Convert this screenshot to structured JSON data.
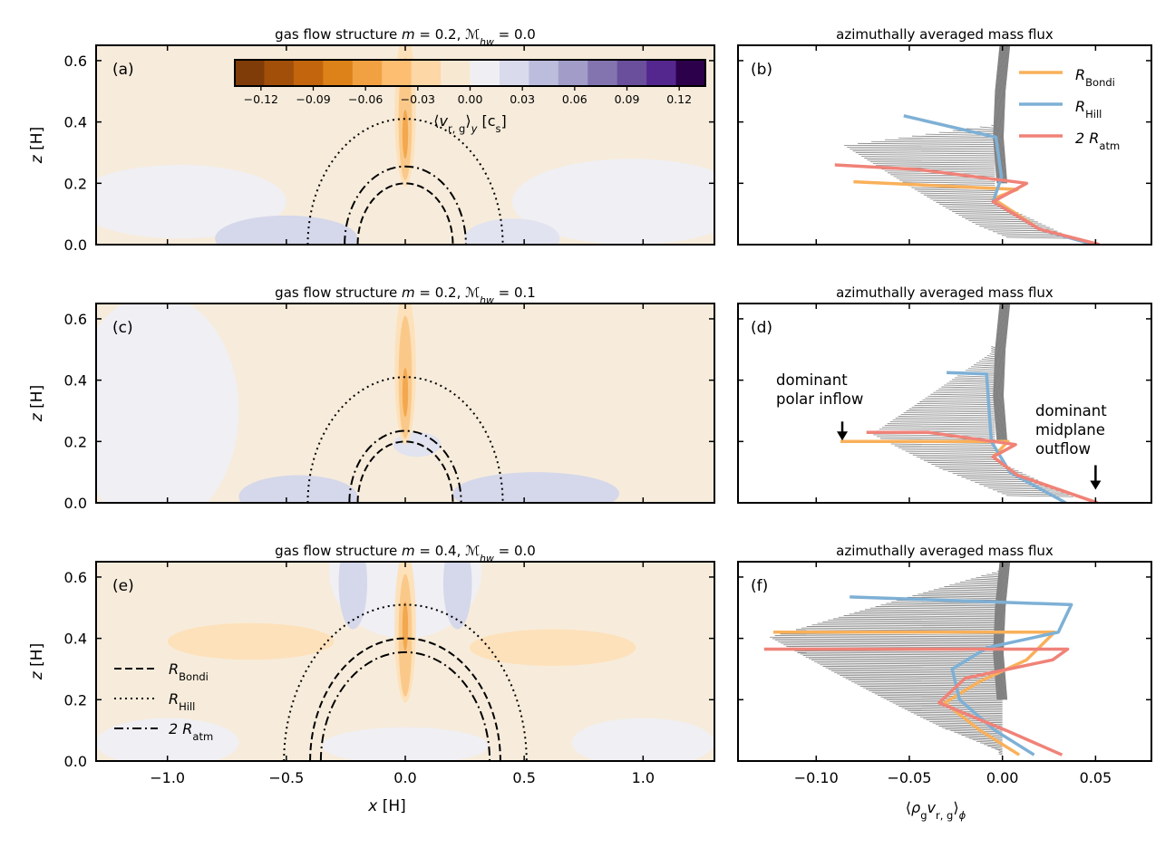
{
  "chart_data": {
    "type": "figure",
    "colormap_colors": [
      "#7f3b08",
      "#a24f0a",
      "#c2650c",
      "#dd8119",
      "#f1a141",
      "#fdbe72",
      "#fdd7a6",
      "#f7e8d2",
      "#efeff3",
      "#d9daeb",
      "#bcbddd",
      "#a19dc8",
      "#8374b0",
      "#6a4f9c",
      "#54278f",
      "#2d004b"
    ],
    "fill_colors": {
      "outflow": "#f7ecdb",
      "neutral": "#efeff4",
      "inflow_pale": "#e2e3f0",
      "inflow": "#d5d7ea",
      "orange_lite": "#fde1bb",
      "orange_mid": "#fac98a",
      "orange_deep": "#f3a84e"
    },
    "line_colors": {
      "bondi": "#f9b05a",
      "hill": "#7eb0d5",
      "atm": "#f08278",
      "gray": "#808080"
    },
    "left_panels": [
      {
        "label": "(a)",
        "title": "gas flow structure  m = 0.2,  ℳ_hw = 0.0",
        "title_parts": [
          "gas flow structure  ",
          "m",
          " = 0.2,  ",
          "ℳ",
          "hw",
          " = 0.0"
        ],
        "xlim": [
          -1.3,
          1.3
        ],
        "ylim": [
          0.0,
          0.65
        ],
        "r_bondi": 0.2,
        "r_hill": 0.41,
        "r_2atm": 0.255
      },
      {
        "label": "(c)",
        "title": "gas flow structure  m = 0.2,  ℳ_hw = 0.1",
        "title_parts": [
          "gas flow structure  ",
          "m",
          " = 0.2,  ",
          "ℳ",
          "hw",
          " = 0.1"
        ],
        "xlim": [
          -1.3,
          1.3
        ],
        "ylim": [
          0.0,
          0.65
        ],
        "r_bondi": 0.2,
        "r_hill": 0.41,
        "r_2atm": 0.235
      },
      {
        "label": "(e)",
        "title": "gas flow structure  m = 0.4,  ℳ_hw = 0.0",
        "title_parts": [
          "gas flow structure  ",
          "m",
          " = 0.4,  ",
          "ℳ",
          "hw",
          " = 0.0"
        ],
        "xlim": [
          -1.3,
          1.3
        ],
        "ylim": [
          0.0,
          0.65
        ],
        "r_bondi": 0.4,
        "r_hill": 0.51,
        "r_2atm": 0.355
      }
    ],
    "right_panels": [
      {
        "label": "(b)",
        "title": "azimuthally averaged mass flux",
        "xlim": [
          -0.142,
          0.08
        ],
        "ylim": [
          0.0,
          0.65
        ],
        "bondi": [
          [
            0.052,
            0.0
          ],
          [
            0.02,
            0.05
          ],
          [
            -0.005,
            0.15
          ],
          [
            0.008,
            0.18
          ],
          [
            -0.08,
            0.205
          ]
        ],
        "hill": [
          [
            0.049,
            0.0
          ],
          [
            0.02,
            0.05
          ],
          [
            -0.005,
            0.14
          ],
          [
            -0.0005,
            0.22
          ],
          [
            -0.0035,
            0.35
          ],
          [
            -0.053,
            0.42
          ]
        ],
        "atm": [
          [
            0.052,
            0.0
          ],
          [
            0.02,
            0.05
          ],
          [
            -0.005,
            0.14
          ],
          [
            0.013,
            0.2
          ],
          [
            -0.045,
            0.245
          ],
          [
            -0.09,
            0.26
          ]
        ],
        "gray_ymax": 0.65,
        "curtain_min": [
          -0.085,
          0.32
        ],
        "curtain_zone": [
          0.01,
          0.39
        ],
        "gray_step": 0.006
      },
      {
        "label": "(d)",
        "title": "azimuthally averaged mass flux",
        "xlim": [
          -0.142,
          0.08
        ],
        "ylim": [
          0.0,
          0.65
        ],
        "bondi": [
          [
            0.051,
            0.0
          ],
          [
            0.008,
            0.09
          ],
          [
            -0.005,
            0.15
          ],
          [
            0.003,
            0.2
          ],
          [
            -0.087,
            0.2
          ]
        ],
        "hill": [
          [
            0.034,
            0.0
          ],
          [
            0.004,
            0.1
          ],
          [
            -0.006,
            0.2
          ],
          [
            -0.0085,
            0.42
          ],
          [
            -0.03,
            0.425
          ]
        ],
        "atm": [
          [
            0.051,
            0.0
          ],
          [
            0.008,
            0.09
          ],
          [
            -0.005,
            0.15
          ],
          [
            0.007,
            0.19
          ],
          [
            -0.04,
            0.23
          ],
          [
            -0.073,
            0.23
          ]
        ],
        "gray_ymax": 0.65,
        "curtain_min": [
          -0.07,
          0.22
        ],
        "curtain_zone": [
          0.04,
          0.51
        ],
        "gray_step": 0.006
      },
      {
        "label": "(f)",
        "title": "azimuthally averaged mass flux",
        "xlim": [
          -0.142,
          0.08
        ],
        "ylim": [
          0.0,
          0.65
        ],
        "bondi": [
          [
            0.009,
            0.02
          ],
          [
            -0.012,
            0.1
          ],
          [
            -0.031,
            0.19
          ],
          [
            -0.012,
            0.26
          ],
          [
            0.013,
            0.33
          ],
          [
            0.028,
            0.42
          ],
          [
            -0.123,
            0.42
          ]
        ],
        "hill": [
          [
            0.017,
            0.02
          ],
          [
            -0.004,
            0.1
          ],
          [
            -0.023,
            0.2
          ],
          [
            -0.027,
            0.3
          ],
          [
            -0.008,
            0.37
          ],
          [
            0.03,
            0.42
          ],
          [
            0.037,
            0.51
          ],
          [
            -0.082,
            0.535
          ]
        ],
        "atm": [
          [
            0.032,
            0.02
          ],
          [
            0.002,
            0.1
          ],
          [
            -0.034,
            0.19
          ],
          [
            -0.02,
            0.27
          ],
          [
            0.027,
            0.33
          ],
          [
            0.035,
            0.365
          ],
          [
            -0.128,
            0.365
          ]
        ],
        "gray_ymax": 0.65,
        "curtain_min": [
          -0.125,
          0.4
        ],
        "curtain_zone": [
          0.015,
          0.62
        ],
        "gray_step": 0.005
      }
    ],
    "x_ticks_left": [
      -1.0,
      -0.5,
      0.0,
      0.5,
      1.0
    ],
    "x_ticks_left_labels": [
      "−1.0",
      "−0.5",
      "0.0",
      "0.5",
      "1.0"
    ],
    "y_ticks": [
      0.0,
      0.2,
      0.4,
      0.6
    ],
    "y_tick_labels": [
      "0.0",
      "0.2",
      "0.4",
      "0.6"
    ],
    "x_ticks_right": [
      -0.1,
      -0.05,
      0.0,
      0.05
    ],
    "x_ticks_right_labels": [
      "−0.10",
      "−0.05",
      "0.00",
      "0.05"
    ],
    "xlabel_left": {
      "var": "x",
      "unit": "[H]"
    },
    "ylabel_left": {
      "var": "z",
      "unit": "[H]"
    },
    "xlabel_right": {
      "open": "⟨",
      "rho": "ρ",
      "sub_g": "g",
      "v": "v",
      "sub_rg": "r, g",
      "close": "⟩",
      "sub_phi": "ϕ"
    },
    "colorbar": {
      "ticks": [
        -0.12,
        -0.09,
        -0.06,
        -0.03,
        0.0,
        0.03,
        0.06,
        0.09,
        0.12
      ],
      "tick_labels": [
        "−0.12",
        "−0.09",
        "−0.06",
        "−0.03",
        "0.00",
        "0.03",
        "0.06",
        "0.09",
        "0.12"
      ],
      "range": [
        -0.135,
        0.135
      ],
      "label": {
        "open": "⟨",
        "v": "v",
        "sub": "r, g",
        "close": "⟩",
        "sub2": "y",
        "unit": "[c",
        "unit_sub": "s",
        "unit_close": "]"
      }
    },
    "legend_right": [
      {
        "key": "bondi",
        "text": "R",
        "sub": "Bondi"
      },
      {
        "key": "hill",
        "text": "R",
        "sub": "Hill"
      },
      {
        "key": "atm",
        "text": "2 R",
        "sub": "atm"
      }
    ],
    "legend_left": [
      {
        "key": "bondi",
        "style": "dashed",
        "text": "R",
        "sub": "Bondi"
      },
      {
        "key": "hill",
        "style": "dotted",
        "text": "R",
        "sub": "Hill"
      },
      {
        "key": "atm",
        "style": "dashdot",
        "text": "2 R",
        "sub": "atm"
      }
    ],
    "annotations": [
      {
        "lines": [
          "dominant",
          "polar inflow"
        ],
        "arrow_at": [
          -0.086,
          0.2
        ]
      },
      {
        "lines": [
          "dominant",
          "midplane",
          "outflow"
        ],
        "arrow_at": [
          0.05,
          0.04
        ]
      }
    ]
  }
}
